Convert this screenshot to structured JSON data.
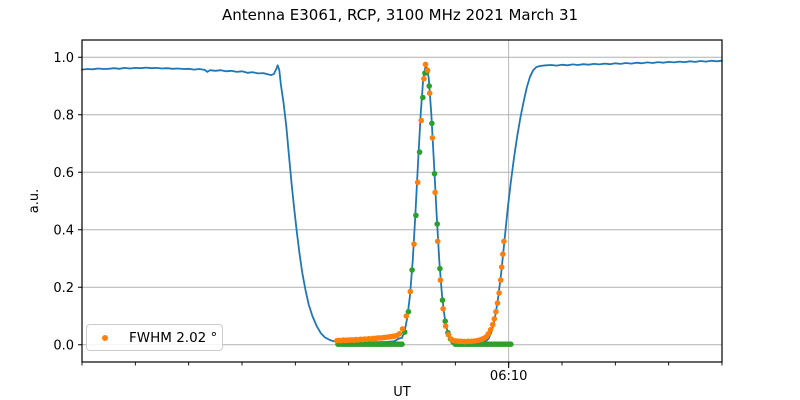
{
  "figure": {
    "title": "Antenna E3061, RCP, 3100 MHz 2021 March 31",
    "xlabel": "UT",
    "ylabel": "a.u.",
    "legend": {
      "label": "FWHM 2.02 °",
      "marker_color": "#ff7f0e"
    }
  },
  "chart_data": {
    "type": "line",
    "title": "Antenna E3061, RCP, 3100 MHz 2021 March 31",
    "xlabel": "UT",
    "ylabel": "a.u.",
    "grid": true,
    "legend_position": "lower left",
    "fwhm_deg": 2.02,
    "x_axis": {
      "unit": "minutes after 06:00 UT",
      "range": [
        2,
        14
      ],
      "minor_tick_step": 1,
      "major_ticks": [
        {
          "value": 10,
          "label": "06:10"
        }
      ]
    },
    "y_axis": {
      "range": [
        -0.06,
        1.06
      ],
      "ticks": [
        0.0,
        0.2,
        0.4,
        0.6,
        0.8,
        1.0
      ],
      "tick_labels": [
        "0.0",
        "0.2",
        "0.4",
        "0.6",
        "0.8",
        "1.0"
      ]
    },
    "colors": {
      "scan": "#1f77b4",
      "fit": "#2ca02c",
      "data": "#ff7f0e",
      "grid": "#b0b0b0"
    },
    "series": [
      {
        "name": "drift-scan-line",
        "type": "line",
        "color": "#1f77b4",
        "points": [
          [
            2.0,
            0.957
          ],
          [
            2.1,
            0.959
          ],
          [
            2.2,
            0.958
          ],
          [
            2.3,
            0.961
          ],
          [
            2.4,
            0.959
          ],
          [
            2.5,
            0.96
          ],
          [
            2.6,
            0.962
          ],
          [
            2.7,
            0.96
          ],
          [
            2.8,
            0.963
          ],
          [
            2.9,
            0.961
          ],
          [
            3.0,
            0.963
          ],
          [
            3.1,
            0.962
          ],
          [
            3.2,
            0.964
          ],
          [
            3.3,
            0.962
          ],
          [
            3.4,
            0.963
          ],
          [
            3.5,
            0.961
          ],
          [
            3.6,
            0.962
          ],
          [
            3.7,
            0.96
          ],
          [
            3.8,
            0.961
          ],
          [
            3.9,
            0.959
          ],
          [
            4.0,
            0.96
          ],
          [
            4.1,
            0.957
          ],
          [
            4.2,
            0.959
          ],
          [
            4.3,
            0.956
          ],
          [
            4.35,
            0.949
          ],
          [
            4.4,
            0.955
          ],
          [
            4.5,
            0.953
          ],
          [
            4.6,
            0.955
          ],
          [
            4.7,
            0.951
          ],
          [
            4.8,
            0.953
          ],
          [
            4.9,
            0.949
          ],
          [
            5.0,
            0.951
          ],
          [
            5.1,
            0.946
          ],
          [
            5.2,
            0.948
          ],
          [
            5.3,
            0.944
          ],
          [
            5.4,
            0.945
          ],
          [
            5.5,
            0.94
          ],
          [
            5.55,
            0.938
          ],
          [
            5.6,
            0.942
          ],
          [
            5.64,
            0.958
          ],
          [
            5.67,
            0.972
          ],
          [
            5.7,
            0.955
          ],
          [
            5.73,
            0.905
          ],
          [
            5.78,
            0.84
          ],
          [
            5.83,
            0.76
          ],
          [
            5.88,
            0.66
          ],
          [
            5.93,
            0.56
          ],
          [
            5.98,
            0.47
          ],
          [
            6.03,
            0.39
          ],
          [
            6.08,
            0.315
          ],
          [
            6.13,
            0.25
          ],
          [
            6.19,
            0.19
          ],
          [
            6.25,
            0.14
          ],
          [
            6.32,
            0.1
          ],
          [
            6.4,
            0.065
          ],
          [
            6.48,
            0.04
          ],
          [
            6.56,
            0.025
          ],
          [
            6.65,
            0.016
          ],
          [
            6.75,
            0.011
          ],
          [
            6.9,
            0.009
          ],
          [
            7.1,
            0.008
          ],
          [
            7.3,
            0.008
          ],
          [
            7.5,
            0.009
          ],
          [
            7.7,
            0.01
          ],
          [
            7.85,
            0.012
          ],
          [
            7.95,
            0.022
          ],
          [
            8.0,
            0.024
          ],
          [
            8.05,
            0.048
          ],
          [
            8.1,
            0.094
          ],
          [
            8.15,
            0.172
          ],
          [
            8.2,
            0.291
          ],
          [
            8.25,
            0.449
          ],
          [
            8.3,
            0.63
          ],
          [
            8.35,
            0.803
          ],
          [
            8.4,
            0.929
          ],
          [
            8.45,
            0.975
          ],
          [
            8.5,
            0.929
          ],
          [
            8.55,
            0.803
          ],
          [
            8.6,
            0.63
          ],
          [
            8.65,
            0.449
          ],
          [
            8.7,
            0.291
          ],
          [
            8.75,
            0.172
          ],
          [
            8.8,
            0.094
          ],
          [
            8.85,
            0.048
          ],
          [
            8.9,
            0.024
          ],
          [
            8.95,
            0.012
          ],
          [
            9.0,
            0.008
          ],
          [
            9.15,
            0.006
          ],
          [
            9.3,
            0.006
          ],
          [
            9.45,
            0.007
          ],
          [
            9.55,
            0.01
          ],
          [
            9.62,
            0.02
          ],
          [
            9.68,
            0.045
          ],
          [
            9.74,
            0.09
          ],
          [
            9.8,
            0.16
          ],
          [
            9.86,
            0.25
          ],
          [
            9.92,
            0.36
          ],
          [
            9.98,
            0.47
          ],
          [
            10.04,
            0.565
          ],
          [
            10.1,
            0.65
          ],
          [
            10.16,
            0.725
          ],
          [
            10.22,
            0.79
          ],
          [
            10.28,
            0.845
          ],
          [
            10.34,
            0.895
          ],
          [
            10.4,
            0.932
          ],
          [
            10.46,
            0.955
          ],
          [
            10.52,
            0.966
          ],
          [
            10.6,
            0.97
          ],
          [
            10.7,
            0.972
          ],
          [
            10.8,
            0.973
          ],
          [
            10.9,
            0.971
          ],
          [
            11.0,
            0.974
          ],
          [
            11.1,
            0.972
          ],
          [
            11.2,
            0.975
          ],
          [
            11.3,
            0.973
          ],
          [
            11.4,
            0.976
          ],
          [
            11.5,
            0.974
          ],
          [
            11.6,
            0.977
          ],
          [
            11.7,
            0.975
          ],
          [
            11.8,
            0.978
          ],
          [
            11.9,
            0.976
          ],
          [
            12.0,
            0.979
          ],
          [
            12.1,
            0.977
          ],
          [
            12.2,
            0.98
          ],
          [
            12.3,
            0.978
          ],
          [
            12.4,
            0.981
          ],
          [
            12.5,
            0.979
          ],
          [
            12.6,
            0.982
          ],
          [
            12.7,
            0.98
          ],
          [
            12.8,
            0.983
          ],
          [
            12.9,
            0.981
          ],
          [
            13.0,
            0.984
          ],
          [
            13.1,
            0.982
          ],
          [
            13.2,
            0.985
          ],
          [
            13.3,
            0.983
          ],
          [
            13.4,
            0.986
          ],
          [
            13.5,
            0.984
          ],
          [
            13.6,
            0.987
          ],
          [
            13.7,
            0.985
          ],
          [
            13.8,
            0.988
          ],
          [
            13.9,
            0.986
          ],
          [
            14.0,
            0.988
          ]
        ]
      },
      {
        "name": "gaussian-fit-dots",
        "type": "scatter",
        "color": "#2ca02c",
        "points": [
          [
            6.8,
            0.002
          ],
          [
            6.84,
            0.002
          ],
          [
            6.88,
            0.002
          ],
          [
            6.92,
            0.002
          ],
          [
            6.96,
            0.002
          ],
          [
            7.0,
            0.002
          ],
          [
            7.04,
            0.002
          ],
          [
            7.08,
            0.002
          ],
          [
            7.12,
            0.002
          ],
          [
            7.16,
            0.002
          ],
          [
            7.2,
            0.002
          ],
          [
            7.24,
            0.002
          ],
          [
            7.28,
            0.002
          ],
          [
            7.32,
            0.002
          ],
          [
            7.36,
            0.002
          ],
          [
            7.4,
            0.002
          ],
          [
            7.44,
            0.002
          ],
          [
            7.48,
            0.002
          ],
          [
            7.52,
            0.002
          ],
          [
            7.56,
            0.002
          ],
          [
            7.6,
            0.002
          ],
          [
            7.64,
            0.002
          ],
          [
            7.68,
            0.002
          ],
          [
            7.72,
            0.002
          ],
          [
            7.76,
            0.002
          ],
          [
            7.8,
            0.002
          ],
          [
            7.84,
            0.002
          ],
          [
            7.88,
            0.002
          ],
          [
            7.92,
            0.002
          ],
          [
            7.96,
            0.002
          ],
          [
            8.0,
            0.002
          ],
          [
            8.05,
            0.044
          ],
          [
            8.12,
            0.115
          ],
          [
            8.19,
            0.26
          ],
          [
            8.26,
            0.45
          ],
          [
            8.33,
            0.67
          ],
          [
            8.39,
            0.86
          ],
          [
            8.43,
            0.945
          ],
          [
            8.47,
            0.95
          ],
          [
            8.51,
            0.9
          ],
          [
            8.56,
            0.77
          ],
          [
            8.61,
            0.595
          ],
          [
            8.66,
            0.42
          ],
          [
            8.71,
            0.265
          ],
          [
            8.76,
            0.155
          ],
          [
            8.81,
            0.082
          ],
          [
            8.86,
            0.042
          ],
          [
            8.91,
            0.02
          ],
          [
            8.96,
            0.009
          ],
          [
            9.0,
            0.002
          ],
          [
            9.04,
            0.002
          ],
          [
            9.08,
            0.002
          ],
          [
            9.12,
            0.002
          ],
          [
            9.16,
            0.002
          ],
          [
            9.2,
            0.002
          ],
          [
            9.24,
            0.002
          ],
          [
            9.28,
            0.002
          ],
          [
            9.32,
            0.002
          ],
          [
            9.36,
            0.002
          ],
          [
            9.4,
            0.002
          ],
          [
            9.44,
            0.002
          ],
          [
            9.48,
            0.002
          ],
          [
            9.52,
            0.002
          ],
          [
            9.56,
            0.002
          ],
          [
            9.6,
            0.002
          ],
          [
            9.64,
            0.002
          ],
          [
            9.68,
            0.002
          ],
          [
            9.72,
            0.002
          ],
          [
            9.76,
            0.002
          ],
          [
            9.8,
            0.002
          ],
          [
            9.84,
            0.002
          ],
          [
            9.88,
            0.002
          ],
          [
            9.92,
            0.002
          ],
          [
            9.96,
            0.002
          ],
          [
            10.0,
            0.002
          ],
          [
            10.04,
            0.002
          ]
        ]
      },
      {
        "name": "measured-data-dots",
        "type": "scatter",
        "color": "#ff7f0e",
        "points": [
          [
            6.78,
            0.014
          ],
          [
            6.82,
            0.015
          ],
          [
            6.86,
            0.014
          ],
          [
            6.9,
            0.016
          ],
          [
            6.94,
            0.015
          ],
          [
            6.98,
            0.016
          ],
          [
            7.02,
            0.016
          ],
          [
            7.06,
            0.017
          ],
          [
            7.1,
            0.016
          ],
          [
            7.14,
            0.018
          ],
          [
            7.18,
            0.017
          ],
          [
            7.22,
            0.019
          ],
          [
            7.26,
            0.018
          ],
          [
            7.3,
            0.02
          ],
          [
            7.34,
            0.019
          ],
          [
            7.38,
            0.021
          ],
          [
            7.42,
            0.02
          ],
          [
            7.46,
            0.022
          ],
          [
            7.5,
            0.022
          ],
          [
            7.54,
            0.023
          ],
          [
            7.58,
            0.024
          ],
          [
            7.62,
            0.024
          ],
          [
            7.66,
            0.025
          ],
          [
            7.7,
            0.026
          ],
          [
            7.74,
            0.027
          ],
          [
            7.78,
            0.028
          ],
          [
            7.82,
            0.029
          ],
          [
            7.86,
            0.03
          ],
          [
            7.9,
            0.032
          ],
          [
            7.95,
            0.038
          ],
          [
            8.01,
            0.055
          ],
          [
            8.08,
            0.1
          ],
          [
            8.155,
            0.185
          ],
          [
            8.225,
            0.35
          ],
          [
            8.295,
            0.565
          ],
          [
            8.36,
            0.78
          ],
          [
            8.41,
            0.925
          ],
          [
            8.44,
            0.975
          ],
          [
            8.48,
            0.955
          ],
          [
            8.52,
            0.875
          ],
          [
            8.57,
            0.72
          ],
          [
            8.62,
            0.53
          ],
          [
            8.67,
            0.36
          ],
          [
            8.72,
            0.225
          ],
          [
            8.77,
            0.125
          ],
          [
            8.82,
            0.065
          ],
          [
            8.87,
            0.035
          ],
          [
            8.92,
            0.02
          ],
          [
            8.97,
            0.014
          ],
          [
            9.02,
            0.013
          ],
          [
            9.07,
            0.012
          ],
          [
            9.12,
            0.012
          ],
          [
            9.18,
            0.011
          ],
          [
            9.24,
            0.012
          ],
          [
            9.3,
            0.012
          ],
          [
            9.36,
            0.013
          ],
          [
            9.42,
            0.015
          ],
          [
            9.48,
            0.018
          ],
          [
            9.53,
            0.022
          ],
          [
            9.58,
            0.028
          ],
          [
            9.62,
            0.038
          ],
          [
            9.66,
            0.052
          ],
          [
            9.7,
            0.07
          ],
          [
            9.73,
            0.09
          ],
          [
            9.76,
            0.115
          ],
          [
            9.79,
            0.145
          ],
          [
            9.82,
            0.18
          ],
          [
            9.85,
            0.225
          ],
          [
            9.87,
            0.27
          ],
          [
            9.89,
            0.315
          ],
          [
            9.91,
            0.36
          ]
        ]
      }
    ]
  }
}
